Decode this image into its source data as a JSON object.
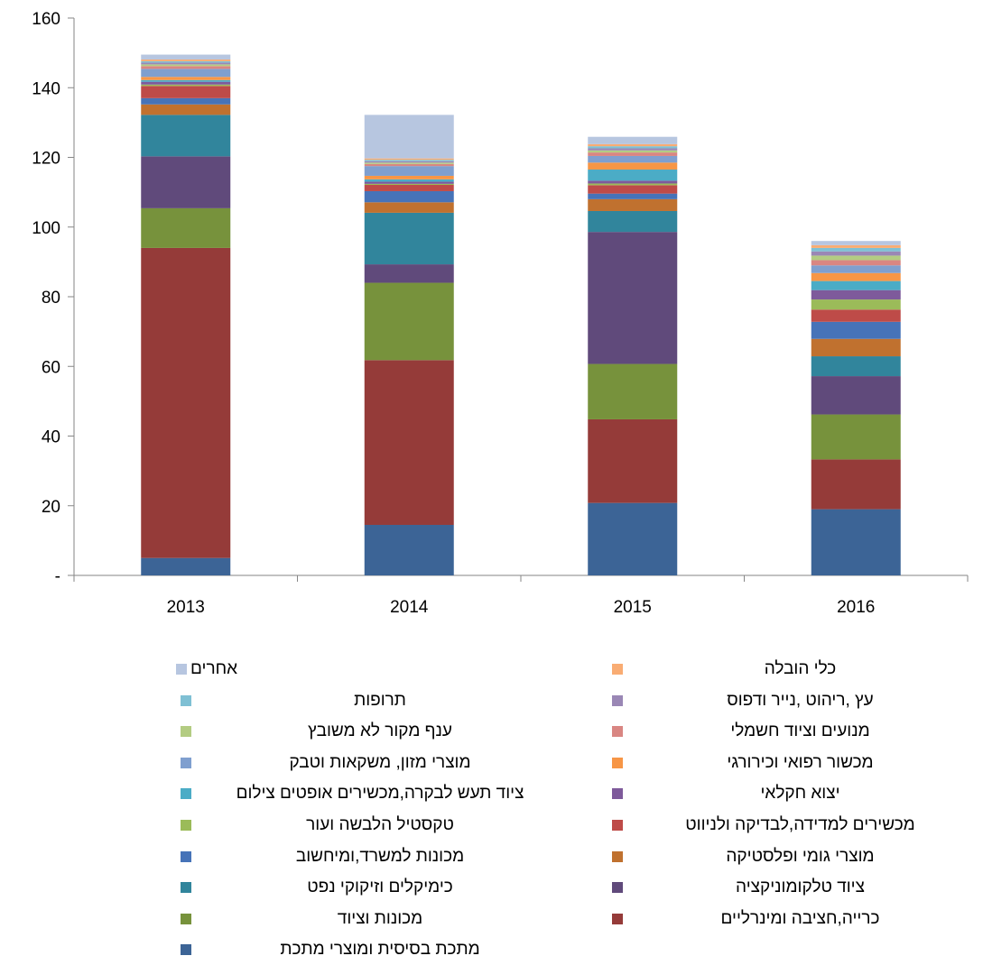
{
  "chart_data": {
    "type": "bar",
    "stacked": true,
    "title": "",
    "xlabel": "",
    "ylabel": "",
    "categories": [
      "2013",
      "2014",
      "2015",
      "2016"
    ],
    "ylim": [
      0,
      160
    ],
    "yticks": [
      0,
      20,
      40,
      60,
      80,
      100,
      120,
      140,
      160
    ],
    "ytick_labels": [
      "-",
      "20",
      "40",
      "60",
      "80",
      "100",
      "120",
      "140",
      "160"
    ],
    "grid": false,
    "legend_position": "bottom",
    "series": [
      {
        "name": "מתכת בסיסית ומוצרי מתכת",
        "color": "#3C6496",
        "values": [
          5.0,
          14.5,
          20.8,
          19.0
        ]
      },
      {
        "name": "כרייה,חציבה ומינרליים",
        "color": "#953B39",
        "values": [
          89.0,
          47.3,
          24.0,
          14.3
        ]
      },
      {
        "name": "מכונות וציוד",
        "color": "#77923C",
        "values": [
          11.4,
          22.2,
          15.9,
          12.9
        ]
      },
      {
        "name": "ציוד טלקומוניקציה",
        "color": "#604A7B",
        "values": [
          14.9,
          5.3,
          37.9,
          11.0
        ]
      },
      {
        "name": "כימיקלים וזיקוקי נפט",
        "color": "#31859C",
        "values": [
          11.9,
          14.8,
          6.0,
          5.7
        ]
      },
      {
        "name": "מוצרי גומי ופלסטיקה",
        "color": "#C0712F",
        "values": [
          3.0,
          3.0,
          3.4,
          5.0
        ]
      },
      {
        "name": "מכונות למשרד,ומיחשוב",
        "color": "#4673B8",
        "values": [
          1.8,
          3.2,
          1.6,
          4.9
        ]
      },
      {
        "name": "מכשירים למדידה,לבדיקה ולניווט",
        "color": "#BE4B48",
        "values": [
          3.5,
          1.8,
          2.4,
          3.5
        ]
      },
      {
        "name": "טקסטיל הלבשה ועור",
        "color": "#9BBB59",
        "values": [
          0.4,
          0.3,
          0.5,
          2.9
        ]
      },
      {
        "name": "יצוא חקלאי",
        "color": "#7E5A9B",
        "values": [
          0.8,
          0.6,
          0.8,
          2.7
        ]
      },
      {
        "name": "ציוד תעש לבקרה,מכשירים אופטים צילום",
        "color": "#4BACC6",
        "values": [
          0.5,
          0.7,
          3.2,
          2.6
        ]
      },
      {
        "name": "מכשור רפואי וכירורגי",
        "color": "#F79646",
        "values": [
          0.9,
          1.0,
          2.0,
          2.3
        ]
      },
      {
        "name": "מוצרי מזון, משקאות וטבק",
        "color": "#7F9FCF",
        "values": [
          2.3,
          2.8,
          1.9,
          2.2
        ]
      },
      {
        "name": "מנועים וציוד חשמלי",
        "color": "#D98682",
        "values": [
          0.8,
          0.6,
          1.0,
          1.5
        ]
      },
      {
        "name": "ענף מקור לא משובץ",
        "color": "#B3CC82",
        "values": [
          0.5,
          0.4,
          0.6,
          1.3
        ]
      },
      {
        "name": "עץ ,ריהוט ,נייר ודפוס",
        "color": "#9A87B5",
        "values": [
          0.5,
          0.4,
          0.6,
          1.2
        ]
      },
      {
        "name": "תרופות",
        "color": "#7FC0D4",
        "values": [
          0.4,
          0.4,
          0.6,
          1.0
        ]
      },
      {
        "name": "כלי הובלה",
        "color": "#F9AC73",
        "values": [
          0.5,
          0.4,
          0.6,
          0.8
        ]
      },
      {
        "name": "אחרים",
        "color": "#B7C6E0",
        "values": [
          1.4,
          12.5,
          2.1,
          1.2
        ]
      }
    ]
  }
}
